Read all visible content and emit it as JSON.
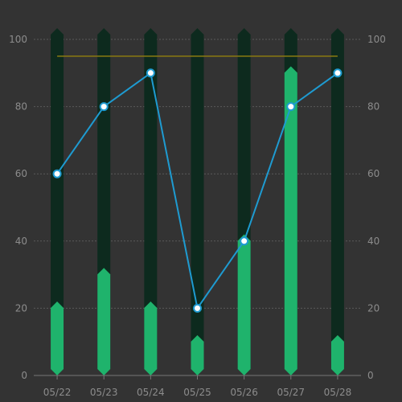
{
  "chart_data": {
    "type": "bar",
    "categories": [
      "05/22",
      "05/23",
      "05/24",
      "05/25",
      "05/26",
      "05/27",
      "05/28"
    ],
    "y_axis_left": {
      "min": 0,
      "max": 100,
      "ticks": [
        "0",
        "20",
        "40",
        "60",
        "80",
        "100"
      ]
    },
    "y_axis_right": {
      "min": 0,
      "max": 100,
      "ticks": [
        "0",
        "20",
        "40",
        "60",
        "80",
        "100"
      ]
    },
    "grid": true,
    "series": [
      {
        "type": "bar",
        "role": "background",
        "values": [
          100,
          100,
          100,
          100,
          100,
          100,
          100
        ],
        "color": "#0d2a1e"
      },
      {
        "type": "bar",
        "role": "value",
        "values": [
          22,
          32,
          22,
          12,
          42,
          92,
          12
        ],
        "color": "#1fb36c"
      },
      {
        "type": "line",
        "values": [
          60,
          80,
          90,
          20,
          40,
          80,
          90
        ],
        "color": "#1e9bd1"
      }
    ],
    "reference_line": {
      "value": 95,
      "color": "#8a7a10"
    }
  }
}
